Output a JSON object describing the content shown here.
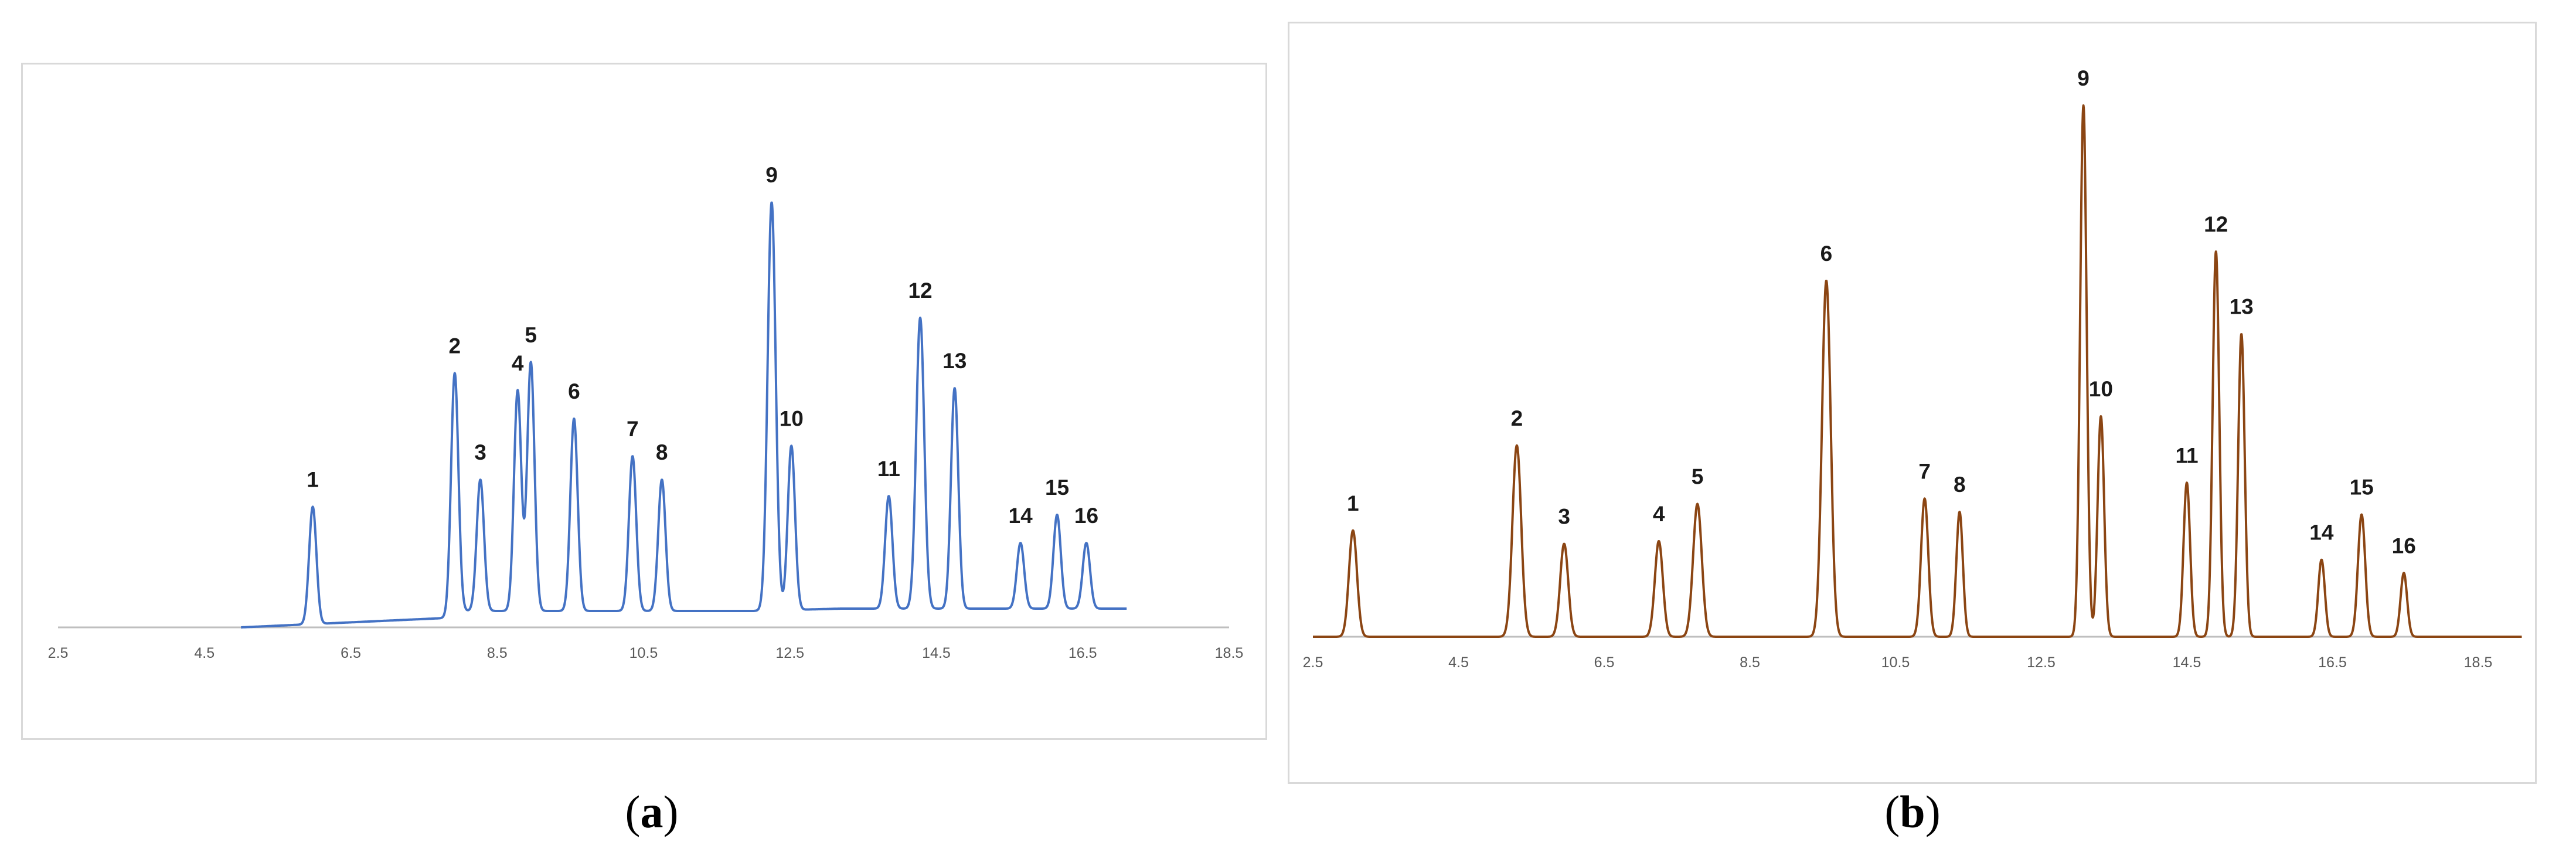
{
  "panels": [
    {
      "id": "a",
      "caption_paren_open": "(",
      "caption_letter": "a",
      "caption_paren_close": ")"
    },
    {
      "id": "b",
      "caption_paren_open": "(",
      "caption_letter": "b",
      "caption_paren_close": ")"
    }
  ],
  "chart_data": [
    {
      "type": "line",
      "panel": "a",
      "color": "#4472C4",
      "x_ticks": [
        "2.5",
        "4.5",
        "6.5",
        "8.5",
        "10.5",
        "12.5",
        "14.5",
        "16.5",
        "18.5"
      ],
      "xlim": [
        2.5,
        18.5
      ],
      "ylim": [
        0,
        1
      ],
      "grid": false,
      "y_axis_labels": false,
      "trace_range": [
        5.0,
        17.1
      ],
      "baseline": [
        [
          5.0,
          0.0
        ],
        [
          7.8,
          0.02
        ],
        [
          7.95,
          0.035
        ],
        [
          12.0,
          0.035
        ],
        [
          13.2,
          0.04
        ],
        [
          17.1,
          0.04
        ]
      ],
      "peaks": [
        {
          "label": "1",
          "x": 5.98,
          "height": 0.25,
          "width": 0.05
        },
        {
          "label": "2",
          "x": 7.92,
          "height": 0.51,
          "width": 0.05
        },
        {
          "label": "3",
          "x": 8.27,
          "height": 0.28,
          "width": 0.05
        },
        {
          "label": "4",
          "x": 8.78,
          "height": 0.47,
          "width": 0.05
        },
        {
          "label": "5",
          "x": 8.96,
          "height": 0.53,
          "width": 0.05
        },
        {
          "label": "6",
          "x": 9.55,
          "height": 0.41,
          "width": 0.05
        },
        {
          "label": "7",
          "x": 10.35,
          "height": 0.33,
          "width": 0.05
        },
        {
          "label": "8",
          "x": 10.75,
          "height": 0.28,
          "width": 0.05
        },
        {
          "label": "9",
          "x": 12.25,
          "height": 0.87,
          "width": 0.055
        },
        {
          "label": "10",
          "x": 12.52,
          "height": 0.35,
          "width": 0.05
        },
        {
          "label": "11",
          "x": 13.85,
          "height": 0.24,
          "width": 0.05
        },
        {
          "label": "12",
          "x": 14.28,
          "height": 0.62,
          "width": 0.055
        },
        {
          "label": "13",
          "x": 14.75,
          "height": 0.47,
          "width": 0.05
        },
        {
          "label": "14",
          "x": 15.65,
          "height": 0.14,
          "width": 0.05
        },
        {
          "label": "15",
          "x": 16.15,
          "height": 0.2,
          "width": 0.05
        },
        {
          "label": "16",
          "x": 16.55,
          "height": 0.14,
          "width": 0.05
        }
      ]
    },
    {
      "type": "line",
      "panel": "b",
      "color": "#8B4513",
      "x_ticks": [
        "2.5",
        "4.5",
        "6.5",
        "8.5",
        "10.5",
        "12.5",
        "14.5",
        "16.5",
        "18.5"
      ],
      "xlim": [
        2.5,
        18.5
      ],
      "ylim": [
        0,
        1
      ],
      "grid": false,
      "y_axis_labels": false,
      "trace_range": [
        2.5,
        19.1
      ],
      "baseline": [
        [
          2.5,
          0.0
        ],
        [
          19.1,
          0.0
        ]
      ],
      "peaks": [
        {
          "label": "1",
          "x": 3.05,
          "height": 0.2,
          "width": 0.055
        },
        {
          "label": "2",
          "x": 5.3,
          "height": 0.36,
          "width": 0.06
        },
        {
          "label": "3",
          "x": 5.95,
          "height": 0.175,
          "width": 0.055
        },
        {
          "label": "4",
          "x": 7.25,
          "height": 0.18,
          "width": 0.055
        },
        {
          "label": "5",
          "x": 7.78,
          "height": 0.25,
          "width": 0.06
        },
        {
          "label": "6",
          "x": 9.55,
          "height": 0.67,
          "width": 0.06
        },
        {
          "label": "7",
          "x": 10.9,
          "height": 0.26,
          "width": 0.05
        },
        {
          "label": "8",
          "x": 11.38,
          "height": 0.235,
          "width": 0.045
        },
        {
          "label": "9",
          "x": 13.08,
          "height": 1.0,
          "width": 0.045
        },
        {
          "label": "10",
          "x": 13.32,
          "height": 0.415,
          "width": 0.045
        },
        {
          "label": "11",
          "x": 14.5,
          "height": 0.29,
          "width": 0.045
        },
        {
          "label": "12",
          "x": 14.9,
          "height": 0.725,
          "width": 0.045
        },
        {
          "label": "13",
          "x": 15.25,
          "height": 0.57,
          "width": 0.045
        },
        {
          "label": "14",
          "x": 16.35,
          "height": 0.145,
          "width": 0.045
        },
        {
          "label": "15",
          "x": 16.9,
          "height": 0.23,
          "width": 0.05
        },
        {
          "label": "16",
          "x": 17.48,
          "height": 0.12,
          "width": 0.045
        }
      ]
    }
  ]
}
